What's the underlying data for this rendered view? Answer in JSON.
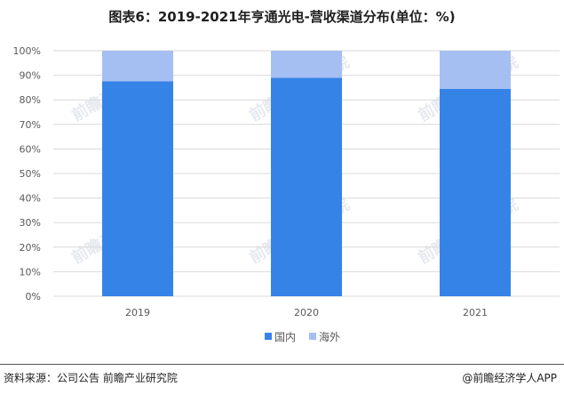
{
  "title": "图表6：2019-2021年亨通光电-营收渠道分布(单位：%)",
  "source": "资料来源：公司公告 前瞻产业研究院",
  "brand": "@前瞻经济学人APP",
  "watermark": "前瞻产业研究院",
  "chart_data": {
    "type": "bar",
    "stacked": true,
    "categories": [
      "2019",
      "2020",
      "2021"
    ],
    "series": [
      {
        "name": "国内",
        "values": [
          87.5,
          89.0,
          84.5
        ],
        "color": "#3683E8"
      },
      {
        "name": "海外",
        "values": [
          12.5,
          11.0,
          15.5
        ],
        "color": "#A6BFF2"
      }
    ],
    "ylim": [
      0,
      100
    ],
    "yticks": [
      "0%",
      "10%",
      "20%",
      "30%",
      "40%",
      "50%",
      "60%",
      "70%",
      "80%",
      "90%",
      "100%"
    ],
    "grid": true,
    "legend_position": "bottom"
  }
}
